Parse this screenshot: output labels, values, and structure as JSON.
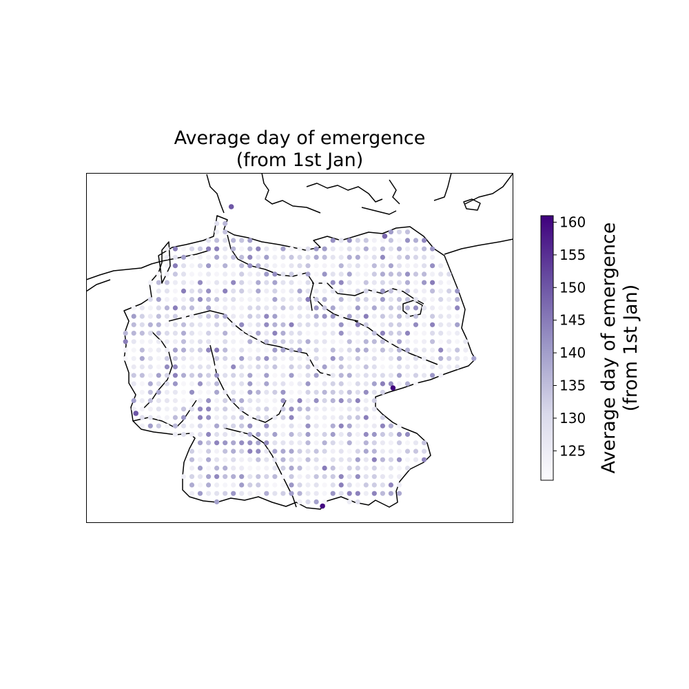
{
  "title": {
    "line1": "Average day of emergence",
    "line2": "(from 1st Jan)"
  },
  "colorbar": {
    "label_line1": "Average day of emergence",
    "label_line2": "(from 1st Jan)",
    "min": 120.5,
    "max": 161,
    "ticks": [
      125,
      130,
      135,
      140,
      145,
      150,
      155,
      160
    ],
    "colormap": "Purples",
    "color_low": "#fcfbfd",
    "color_high": "#3f007d"
  },
  "chart_data": {
    "type": "scatter",
    "title": "Average day of emergence (from 1st Jan)",
    "region": "Germany",
    "value_label": "Average day of emergence (from 1st Jan)",
    "value_range": [
      120.5,
      161
    ],
    "extent": {
      "lon": [
        5.5,
        15.8
      ],
      "lat": [
        47.0,
        55.3
      ]
    },
    "grid_spacing_deg": {
      "lon": 0.2,
      "lat": 0.2
    },
    "notable_points": [
      {
        "lon": 12.9,
        "lat": 50.2,
        "value": 161
      },
      {
        "lon": 11.2,
        "lat": 47.4,
        "value": 160
      },
      {
        "lon": 9.0,
        "lat": 54.5,
        "value": 150
      },
      {
        "lon": 6.7,
        "lat": 49.6,
        "value": 150
      },
      {
        "lon": 12.7,
        "lat": 53.8,
        "value": 148
      }
    ],
    "typical_value_range": [
      122,
      145
    ]
  }
}
